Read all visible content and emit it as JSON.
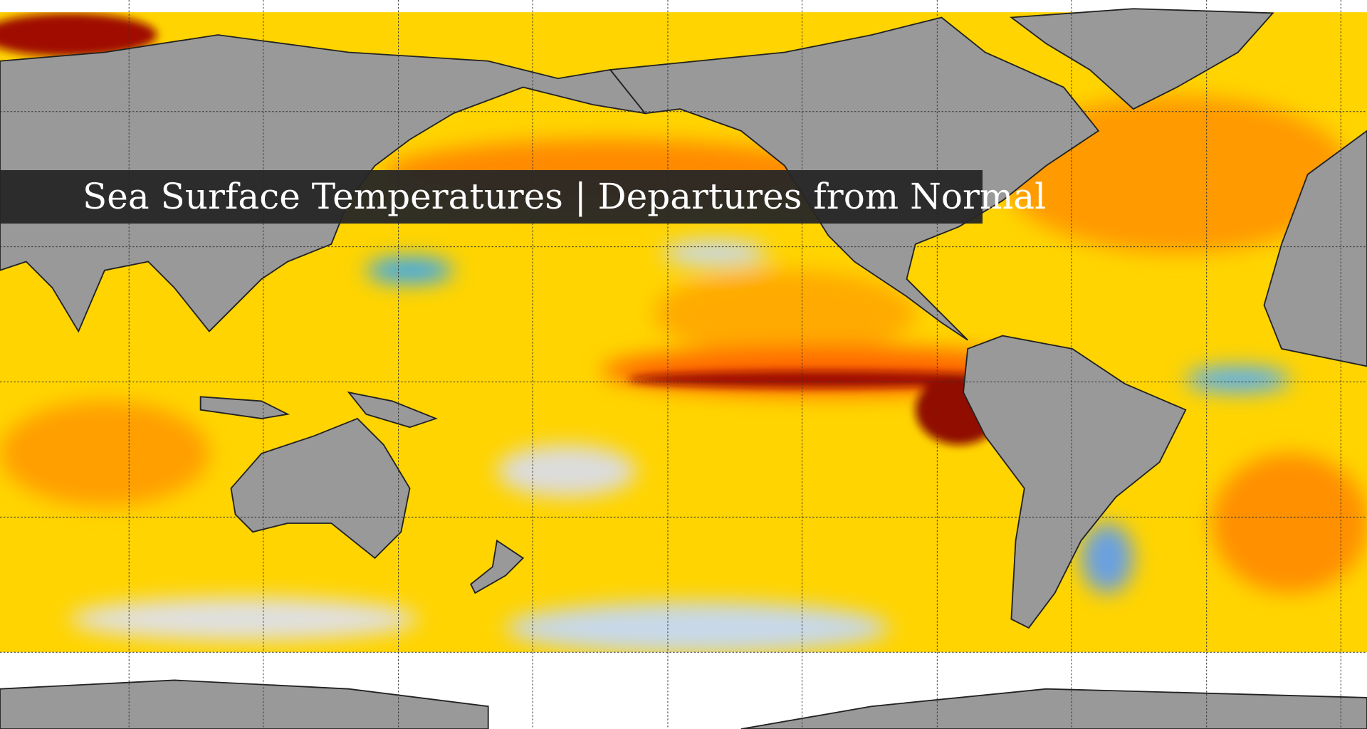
{
  "header": {
    "title": "Sea Surface Temperatures | Departures from Normal"
  }
}
